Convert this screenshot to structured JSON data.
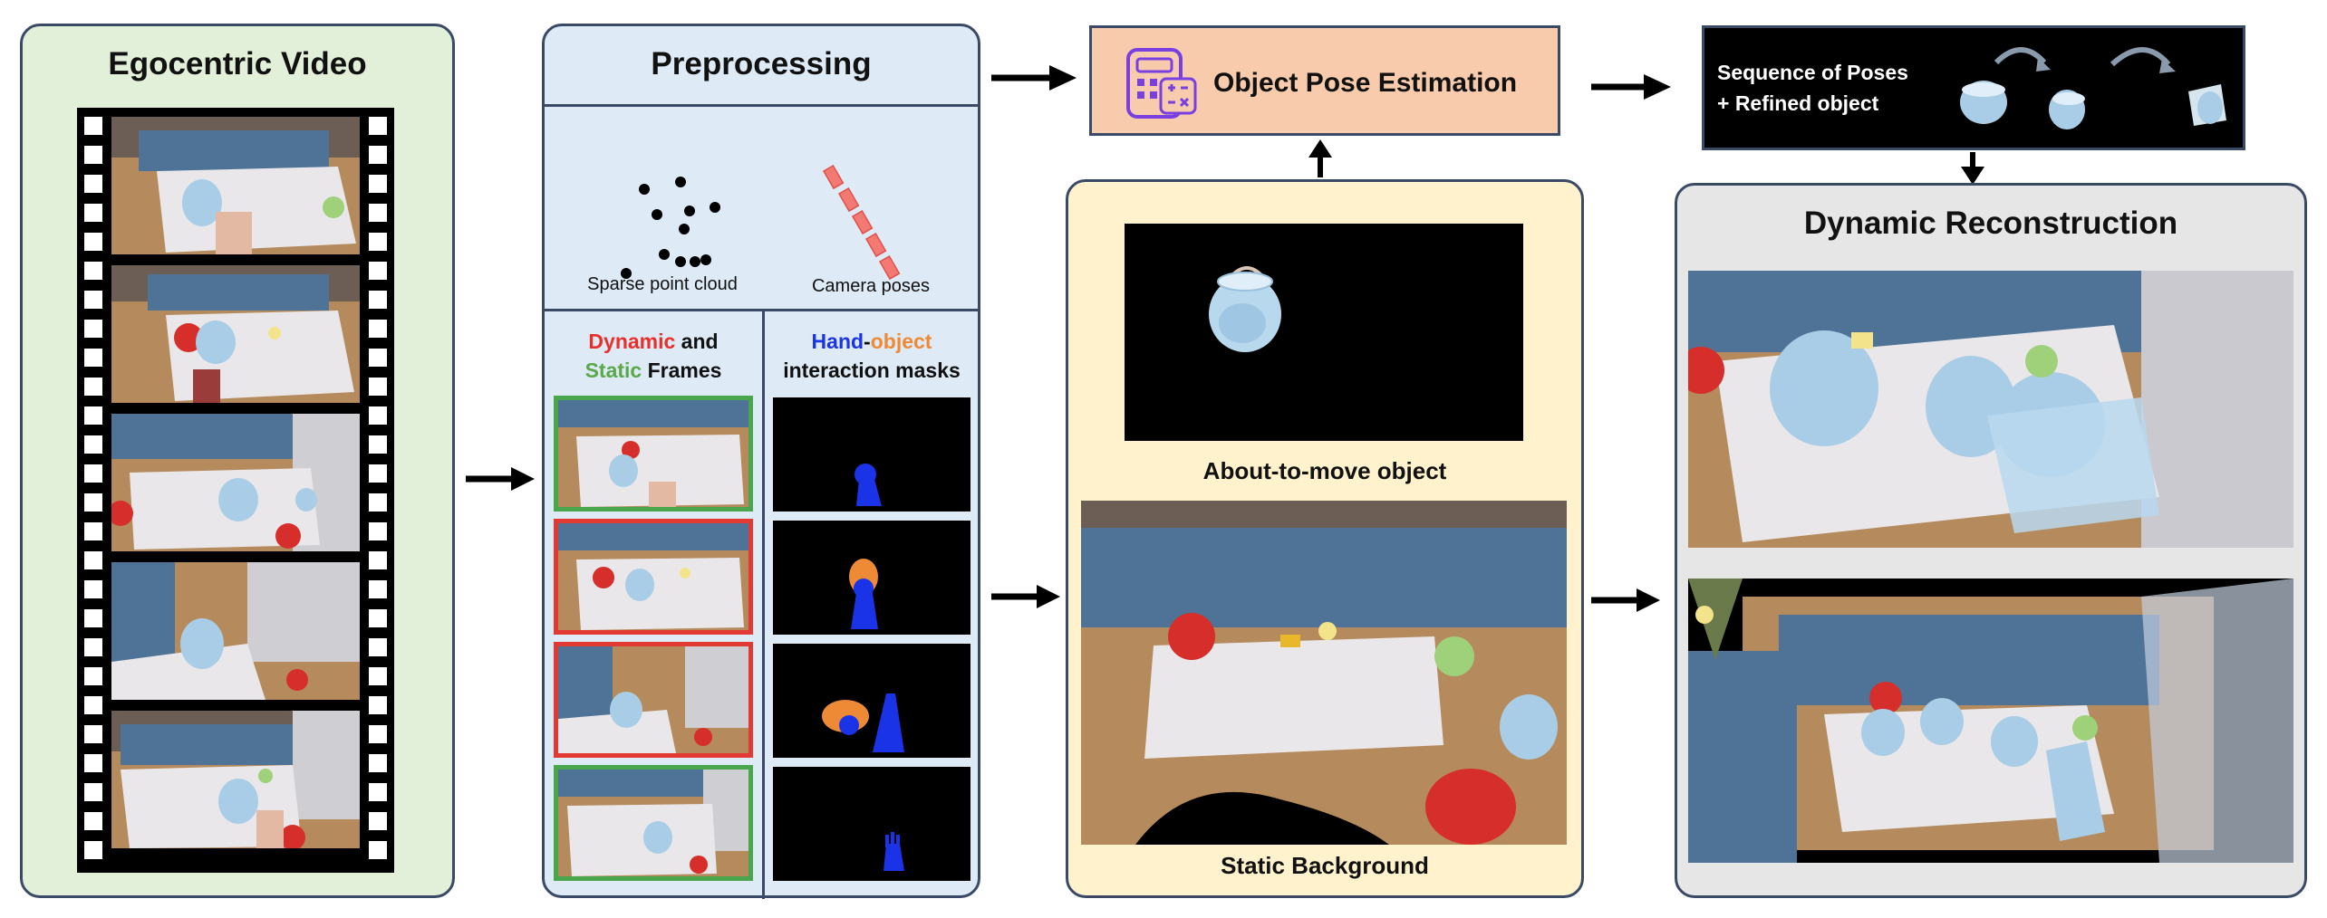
{
  "egocentric": {
    "title": "Egocentric Video"
  },
  "preprocessing": {
    "title": "Preprocessing",
    "sparse_label": "Sparse point cloud",
    "camera_label": "Camera poses",
    "dynamic_word": "Dynamic",
    "and_word": " and",
    "static_word": "Static",
    "frames_word": " Frames",
    "hand_word": "Hand",
    "dash": "-",
    "object_word": "object",
    "masks_line2": "interaction masks",
    "frame_borders": [
      "green",
      "red",
      "red",
      "green"
    ]
  },
  "pose_estimation": {
    "label": "Object Pose Estimation"
  },
  "middle": {
    "about_label": "About-to-move object",
    "static_bg_label": "Static Background"
  },
  "sequence": {
    "line1": "Sequence of Poses",
    "line2": "+ Refined object"
  },
  "dynamic_recon": {
    "title": "Dynamic Reconstruction"
  },
  "colors": {
    "green_panel": "#e2efd9",
    "blue_panel": "#deeaf6",
    "yellow_panel": "#fff2cc",
    "gray_panel": "#e7e6e6",
    "pose_box": "#f8cbad",
    "dynamic_red": "#e8302a",
    "static_green": "#5aa84a",
    "hand_blue": "#1a33e6",
    "object_orange": "#ee8a36",
    "frame_green": "#4aa64a",
    "frame_red": "#e23a32"
  }
}
